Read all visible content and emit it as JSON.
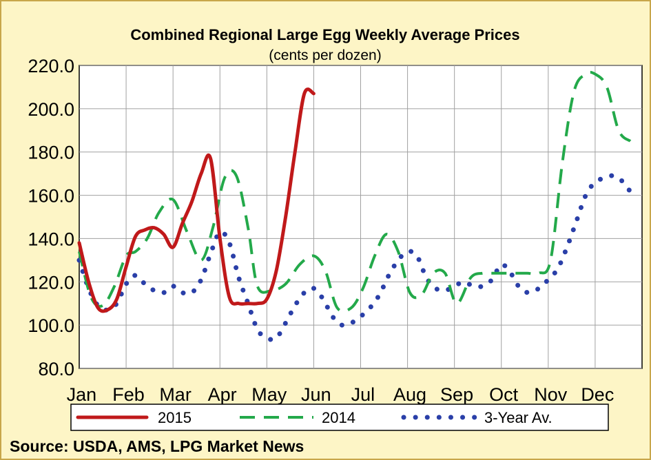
{
  "chart_data": {
    "type": "line",
    "title": "Combined Regional Large Egg Weekly Average Prices",
    "subtitle": "(cents per dozen)",
    "xlabel": "",
    "ylabel": "",
    "ylim": [
      80,
      220
    ],
    "yticks": [
      "220.0",
      "200.0",
      "180.0",
      "160.0",
      "140.0",
      "120.0",
      "100.0",
      "80.0"
    ],
    "ytick_values": [
      220,
      200,
      180,
      160,
      140,
      120,
      100,
      80
    ],
    "xlim": [
      0,
      12
    ],
    "categories": [
      "Jan",
      "Feb",
      "Mar",
      "Apr",
      "May",
      "Jun",
      "Jul",
      "Aug",
      "Sep",
      "Oct",
      "Nov",
      "Dec"
    ],
    "grid": true,
    "legend_position": "bottom",
    "source": "Source: USDA, AMS, LPG  Market News",
    "series": [
      {
        "name": "2015",
        "style": "solid",
        "color": "#c0191a",
        "x": [
          0.0,
          0.2,
          0.4,
          0.6,
          0.8,
          1.0,
          1.2,
          1.4,
          1.6,
          1.8,
          2.0,
          2.2,
          2.4,
          2.6,
          2.8,
          3.0,
          3.2,
          3.4,
          3.6,
          3.8,
          4.0,
          4.2,
          4.4,
          4.6,
          4.8,
          5.0
        ],
        "values": [
          138.0,
          120.0,
          108.0,
          107.0,
          112.0,
          127.0,
          141.0,
          144.0,
          145.0,
          142.0,
          136.0,
          147.0,
          157.0,
          170.0,
          177.0,
          140.0,
          113.0,
          110.0,
          110.0,
          110.0,
          112.0,
          125.0,
          150.0,
          180.0,
          207.0,
          207.0
        ]
      },
      {
        "name": "2014",
        "style": "dashed",
        "color": "#23a94a",
        "x": [
          0.0,
          0.25,
          0.5,
          0.75,
          1.0,
          1.2,
          1.45,
          1.7,
          2.0,
          2.3,
          2.6,
          2.85,
          3.1,
          3.35,
          3.6,
          3.8,
          4.1,
          4.4,
          4.7,
          5.0,
          5.25,
          5.5,
          5.8,
          6.05,
          6.3,
          6.55,
          6.8,
          7.05,
          7.3,
          7.55,
          7.8,
          8.05,
          8.35,
          8.6,
          8.8,
          9.0,
          9.3,
          9.55,
          9.8,
          10.05,
          10.3,
          10.55,
          10.8,
          11.0,
          11.25,
          11.5,
          11.75
        ],
        "values": [
          134.0,
          113.0,
          109.0,
          118.0,
          132.0,
          134.0,
          140.0,
          152.0,
          158.0,
          143.0,
          130.0,
          145.0,
          168.0,
          169.0,
          145.0,
          118.0,
          116.0,
          119.0,
          128.0,
          132.0,
          125.0,
          108.0,
          108.0,
          117.0,
          132.0,
          142.0,
          134.0,
          115.0,
          114.0,
          124.0,
          124.0,
          110.0,
          122.0,
          124.0,
          124.0,
          124.0,
          124.0,
          124.0,
          124.0,
          130.0,
          175.0,
          208.0,
          216.0,
          216.0,
          210.0,
          190.0,
          185.0
        ]
      },
      {
        "name": "3-Year Av.",
        "style": "dotted",
        "color": "#2a3fa8",
        "x": [
          0.0,
          0.2,
          0.4,
          0.6,
          0.8,
          1.0,
          1.2,
          1.4,
          1.6,
          1.8,
          2.0,
          2.2,
          2.4,
          2.6,
          2.8,
          3.0,
          3.2,
          3.4,
          3.6,
          3.8,
          4.0,
          4.2,
          4.4,
          4.6,
          4.8,
          5.0,
          5.2,
          5.4,
          5.6,
          5.8,
          6.0,
          6.2,
          6.4,
          6.6,
          6.8,
          7.0,
          7.2,
          7.4,
          7.6,
          7.8,
          8.0,
          8.2,
          8.4,
          8.6,
          8.8,
          9.0,
          9.2,
          9.4,
          9.6,
          9.8,
          10.0,
          10.2,
          10.4,
          10.6,
          10.8,
          11.0,
          11.2,
          11.4,
          11.6,
          11.8
        ],
        "values": [
          130.0,
          117.0,
          109.0,
          107.0,
          110.0,
          119.0,
          123.0,
          119.0,
          116.0,
          115.0,
          118.0,
          115.0,
          115.0,
          121.0,
          133.0,
          143.0,
          138.0,
          122.0,
          110.0,
          98.0,
          94.0,
          94.0,
          101.0,
          109.0,
          115.0,
          117.0,
          112.0,
          104.0,
          100.0,
          101.0,
          104.0,
          108.0,
          114.0,
          123.0,
          130.0,
          134.0,
          132.0,
          122.0,
          117.0,
          116.0,
          118.0,
          120.0,
          118.0,
          118.0,
          121.0,
          128.0,
          124.0,
          117.0,
          115.0,
          117.0,
          121.0,
          126.0,
          136.0,
          148.0,
          160.0,
          166.0,
          168.0,
          169.0,
          166.0,
          160.0
        ]
      }
    ]
  }
}
